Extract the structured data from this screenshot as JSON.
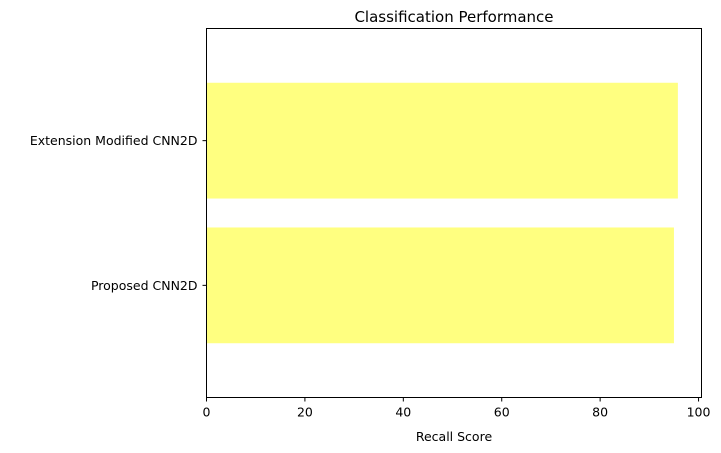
{
  "chart_data": {
    "type": "bar",
    "orientation": "horizontal",
    "title": "Classification Performance",
    "xlabel": "Recall Score",
    "ylabel": "",
    "categories": [
      "Proposed CNN2D",
      "Extension Modified CNN2D"
    ],
    "values": [
      95,
      95.8
    ],
    "xlim": [
      0,
      100.6
    ],
    "xticks": [
      0,
      20,
      40,
      60,
      80,
      100
    ],
    "xtick_labels": [
      "0",
      "20",
      "40",
      "60",
      "80",
      "100"
    ],
    "bar_color": "#ffff80",
    "grid": false,
    "legend": "none"
  }
}
